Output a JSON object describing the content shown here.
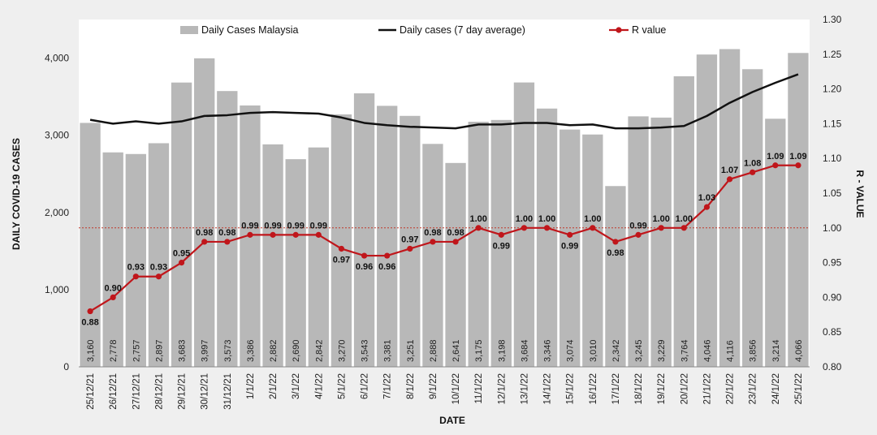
{
  "chart_data": {
    "type": "bar",
    "title": "",
    "xlabel": "DATE",
    "ylabel": "DAILY COVID-19 CASES",
    "y2label": "R - VALUE",
    "ylim": [
      0,
      4500
    ],
    "y2lim": [
      0.8,
      1.3
    ],
    "yticks": [
      0,
      1000,
      2000,
      3000,
      4000
    ],
    "ytick_labels": [
      "0",
      "1,000",
      "2,000",
      "3,000",
      "4,000"
    ],
    "y2ticks": [
      0.8,
      0.85,
      0.9,
      0.95,
      1.0,
      1.05,
      1.1,
      1.15,
      1.2,
      1.25,
      1.3
    ],
    "y2tick_labels": [
      "0.80",
      "0.85",
      "0.90",
      "0.95",
      "1.00",
      "1.05",
      "1.10",
      "1.15",
      "1.20",
      "1.25",
      "1.30"
    ],
    "reference_line": {
      "axis": "y2",
      "value": 1.0,
      "color": "#c0392b",
      "style": "dotted"
    },
    "categories": [
      "25/12/21",
      "26/12/21",
      "27/12/21",
      "28/12/21",
      "29/12/21",
      "30/12/21",
      "31/12/21",
      "1/1/22",
      "2/1/22",
      "3/1/22",
      "4/1/22",
      "5/1/22",
      "6/1/22",
      "7/1/22",
      "8/1/22",
      "9/1/22",
      "10/1/22",
      "11/1/22",
      "12/1/22",
      "13/1/22",
      "14/1/22",
      "15/1/22",
      "16/1/22",
      "17/1/22",
      "18/1/22",
      "19/1/22",
      "20/1/22",
      "21/1/22",
      "22/1/22",
      "23/1/22",
      "24/1/22",
      "25/1/22"
    ],
    "series": [
      {
        "name": "Daily Cases Malaysia",
        "type": "bar",
        "axis": "y",
        "color": "#b8b8b8",
        "values": [
          3160,
          2778,
          2757,
          2897,
          3683,
          3997,
          3573,
          3386,
          2882,
          2690,
          2842,
          3270,
          3543,
          3381,
          3251,
          2888,
          2641,
          3175,
          3198,
          3684,
          3346,
          3074,
          3010,
          2342,
          3245,
          3229,
          3764,
          4046,
          4116,
          3856,
          3214,
          4066
        ],
        "labels": [
          "3,160",
          "2,778",
          "2,757",
          "2,897",
          "3,683",
          "3,997",
          "3,573",
          "3,386",
          "2,882",
          "2,690",
          "2,842",
          "3,270",
          "3,543",
          "3,381",
          "3,251",
          "2,888",
          "2,641",
          "3,175",
          "3,198",
          "3,684",
          "3,346",
          "3,074",
          "3,010",
          "2,342",
          "3,245",
          "3,229",
          "3,764",
          "4,046",
          "4,116",
          "3,856",
          "3,214",
          "4,066"
        ]
      },
      {
        "name": "Daily cases (7 day average)",
        "type": "line",
        "axis": "y",
        "color": "#111111",
        "values": [
          3200,
          3150,
          3180,
          3150,
          3180,
          3250,
          3260,
          3290,
          3300,
          3290,
          3280,
          3230,
          3160,
          3130,
          3110,
          3100,
          3090,
          3140,
          3140,
          3160,
          3160,
          3130,
          3140,
          3090,
          3090,
          3100,
          3120,
          3250,
          3420,
          3560,
          3680,
          3790
        ]
      },
      {
        "name": "R value",
        "type": "line",
        "axis": "y2",
        "color": "#c0161b",
        "marker": "circle",
        "values": [
          0.88,
          0.9,
          0.93,
          0.93,
          0.95,
          0.98,
          0.98,
          0.99,
          0.99,
          0.99,
          0.99,
          0.97,
          0.96,
          0.96,
          0.97,
          0.98,
          0.98,
          1.0,
          0.99,
          1.0,
          1.0,
          0.99,
          1.0,
          0.98,
          0.99,
          1.0,
          1.0,
          1.03,
          1.07,
          1.08,
          1.09,
          1.09
        ],
        "labels": [
          "0.88",
          "0.90",
          "0.93",
          "0.93",
          "0.95",
          "0.98",
          "0.98",
          "0.99",
          "0.99",
          "0.99",
          "0.99",
          "0.97",
          "0.96",
          "0.96",
          "0.97",
          "0.98",
          "0.98",
          "1.00",
          "0.99",
          "1.00",
          "1.00",
          "0.99",
          "1.00",
          "0.98",
          "0.99",
          "1.00",
          "1.00",
          "1.03",
          "1.07",
          "1.08",
          "1.09",
          "1.09"
        ]
      }
    ],
    "legend": {
      "position": "top",
      "entries": [
        "Daily Cases Malaysia",
        "Daily cases (7 day average)",
        "R value"
      ]
    },
    "grid": false
  }
}
